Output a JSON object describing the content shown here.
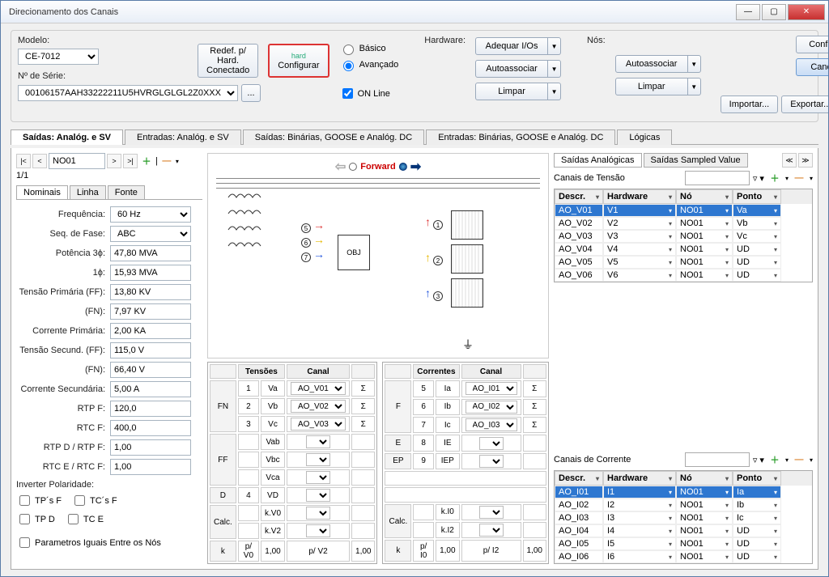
{
  "window": {
    "title": "Direcionamento dos Canais"
  },
  "top": {
    "modelo_label": "Modelo:",
    "modelo_value": "CE-7012",
    "serie_label": "Nº de Série:",
    "serie_value": "00106157AAH33222211U5HVRGLGLGL2Z0XXX",
    "redef": "Redef. p/ Hard. Conectado",
    "configurar": "Configurar",
    "basico": "Básico",
    "avancado": "Avançado",
    "online": "ON Line",
    "hardware_label": "Hardware:",
    "adequar": "Adequar I/Os",
    "autoassociar": "Autoassociar",
    "limpar": "Limpar",
    "nos_label": "Nós:",
    "confirmar": "Confirmar",
    "cancelar": "Cancelar",
    "importar": "Importar...",
    "exportar": "Exportar..."
  },
  "maintabs": {
    "t1": "Saídas: Analóg. e SV",
    "t2": "Entradas: Analóg. e SV",
    "t3": "Saídas: Binárias, GOOSE e Analóg. DC",
    "t4": "Entradas: Binárias, GOOSE e Analóg. DC",
    "t5": "Lógicas"
  },
  "nav": {
    "node": "NO01",
    "counter": "1/1"
  },
  "subtabs": {
    "s1": "Nominais",
    "s2": "Linha",
    "s3": "Fonte"
  },
  "form": {
    "freq_l": "Frequência:",
    "freq_v": "60 Hz",
    "seq_l": "Seq. de Fase:",
    "seq_v": "ABC",
    "pot3_l": "Potência 3ϕ:",
    "pot3_v": "47,80 MVA",
    "pot1_l": "1ϕ:",
    "pot1_v": "15,93 MVA",
    "tpff_l": "Tensão Primária (FF):",
    "tpff_v": "13,80 KV",
    "fn1_l": "(FN):",
    "fn1_v": "7,97 KV",
    "cp_l": "Corrente Primária:",
    "cp_v": "2,00 KA",
    "tsff_l": "Tensão Secund. (FF):",
    "tsff_v": "115,0 V",
    "fn2_l": "(FN):",
    "fn2_v": "66,40 V",
    "cs_l": "Corrente Secundária:",
    "cs_v": "5,00 A",
    "rtpf_l": "RTP F:",
    "rtpf_v": "120,0",
    "rtcf_l": "RTC F:",
    "rtcf_v": "400,0",
    "rtpd_l": "RTP D / RTP F:",
    "rtpd_v": "1,00",
    "rtce_l": "RTC E / RTC F:",
    "rtce_v": "1,00",
    "inv_l": "Inverter Polaridade:",
    "tpsF": "TP´s F",
    "tcsF": "TC´s F",
    "tpD": "TP D",
    "tcE": "TC E",
    "param": "Parametros Iguais Entre os Nós"
  },
  "diagram": {
    "forward": "Forward",
    "obj": "OBJ"
  },
  "tensoes": {
    "title": "Tensões",
    "canal": "Canal",
    "fn": "FN",
    "ff": "FF",
    "d": "D",
    "calc": "Calc.",
    "k": "k",
    "r1": {
      "n": "1",
      "v": "Va",
      "c": "AO_V01"
    },
    "r2": {
      "n": "2",
      "v": "Vb",
      "c": "AO_V02"
    },
    "r3": {
      "n": "3",
      "v": "Vc",
      "c": "AO_V03"
    },
    "vab": "Vab",
    "vbc": "Vbc",
    "vca": "Vca",
    "d4": "4",
    "vd": "VD",
    "kv0": "k.V0",
    "kv2": "k.V2",
    "pv0l": "p/ V0",
    "pv0v": "1,00",
    "pv2l": "p/ V2",
    "pv2v": "1,00"
  },
  "correntes": {
    "title": "Correntes",
    "canal": "Canal",
    "f": "F",
    "e": "E",
    "ep": "EP",
    "calc": "Calc.",
    "k": "k",
    "r5": {
      "n": "5",
      "v": "Ia",
      "c": "AO_I01"
    },
    "r6": {
      "n": "6",
      "v": "Ib",
      "c": "AO_I02"
    },
    "r7": {
      "n": "7",
      "v": "Ic",
      "c": "AO_I03"
    },
    "r8": {
      "n": "8",
      "v": "IE"
    },
    "r9": {
      "n": "9",
      "v": "IEP"
    },
    "ki0": "k.I0",
    "ki2": "k.I2",
    "pi0l": "p/ I0",
    "pi0v": "1,00",
    "pi2l": "p/ I2",
    "pi2v": "1,00"
  },
  "right": {
    "tab1": "Saídas Analógicas",
    "tab2": "Saídas Sampled Value",
    "tensao_hdr": "Canais de Tensão",
    "corrente_hdr": "Canais de Corrente",
    "col_descr": "Descr.",
    "col_hw": "Hardware",
    "col_no": "Nó",
    "col_ponto": "Ponto",
    "vrows": [
      {
        "d": "AO_V01",
        "h": "V1",
        "n": "NO01",
        "p": "Va"
      },
      {
        "d": "AO_V02",
        "h": "V2",
        "n": "NO01",
        "p": "Vb"
      },
      {
        "d": "AO_V03",
        "h": "V3",
        "n": "NO01",
        "p": "Vc"
      },
      {
        "d": "AO_V04",
        "h": "V4",
        "n": "NO01",
        "p": "UD"
      },
      {
        "d": "AO_V05",
        "h": "V5",
        "n": "NO01",
        "p": "UD"
      },
      {
        "d": "AO_V06",
        "h": "V6",
        "n": "NO01",
        "p": "UD"
      }
    ],
    "irows": [
      {
        "d": "AO_I01",
        "h": "I1",
        "n": "NO01",
        "p": "Ia"
      },
      {
        "d": "AO_I02",
        "h": "I2",
        "n": "NO01",
        "p": "Ib"
      },
      {
        "d": "AO_I03",
        "h": "I3",
        "n": "NO01",
        "p": "Ic"
      },
      {
        "d": "AO_I04",
        "h": "I4",
        "n": "NO01",
        "p": "UD"
      },
      {
        "d": "AO_I05",
        "h": "I5",
        "n": "NO01",
        "p": "UD"
      },
      {
        "d": "AO_I06",
        "h": "I6",
        "n": "NO01",
        "p": "UD"
      }
    ]
  }
}
